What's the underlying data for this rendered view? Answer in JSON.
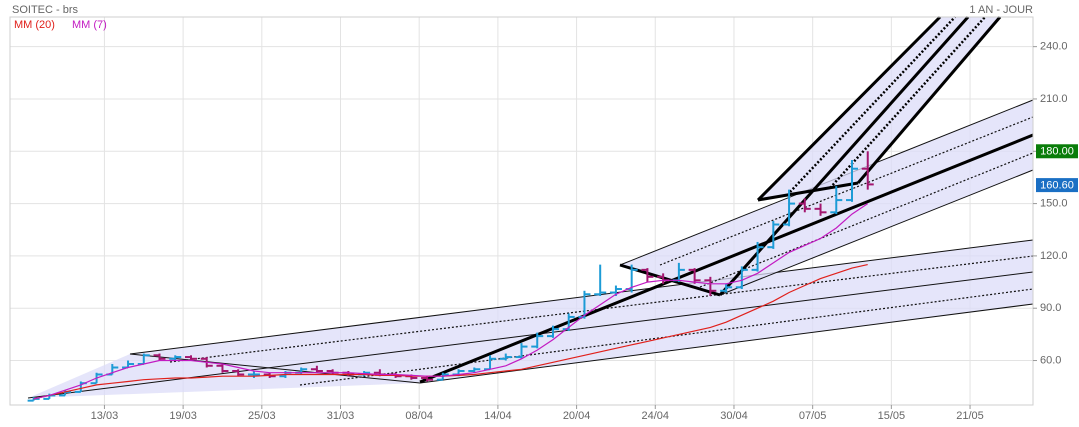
{
  "chart_data": {
    "type": "ohlc",
    "title": "SOITEC - brs",
    "period": "1 AN - JOUR",
    "x": [
      1,
      2,
      3,
      4,
      5,
      6,
      7,
      8,
      9,
      10,
      11,
      12,
      13,
      14,
      15,
      16,
      17,
      18,
      19,
      20,
      21,
      22,
      23,
      24,
      25,
      26,
      27,
      28,
      29,
      30,
      31,
      32,
      33,
      34,
      35,
      36,
      37,
      38,
      39,
      40,
      41,
      42,
      43,
      44,
      45,
      46,
      47,
      48,
      49,
      50,
      51,
      52,
      53,
      54
    ],
    "open": [
      37,
      38,
      40,
      42,
      47,
      52,
      56,
      58,
      63,
      61,
      62,
      61,
      57,
      54,
      52,
      52,
      51,
      53,
      55,
      54,
      53,
      52,
      53,
      52,
      51,
      50,
      49,
      52,
      54,
      55,
      61,
      62,
      68,
      74,
      78,
      85,
      98,
      99,
      101,
      112,
      108,
      106,
      112,
      106,
      100,
      102,
      112,
      125,
      138,
      150,
      147,
      145,
      152,
      170
    ],
    "high": [
      39,
      41,
      43,
      48,
      53,
      58,
      60,
      64,
      64,
      63,
      63,
      62,
      58,
      55,
      54,
      53,
      54,
      56,
      57,
      55,
      54,
      54,
      55,
      53,
      52,
      51,
      53,
      55,
      56,
      63,
      64,
      70,
      76,
      80,
      87,
      100,
      115,
      103,
      115,
      113,
      110,
      116,
      113,
      108,
      104,
      114,
      128,
      140,
      158,
      153,
      150,
      160,
      175,
      180
    ],
    "low": [
      37,
      38,
      40,
      42,
      47,
      52,
      56,
      58,
      60,
      60,
      60,
      56,
      53,
      51,
      50,
      50,
      50,
      52,
      53,
      52,
      51,
      51,
      51,
      50,
      49,
      48,
      49,
      51,
      53,
      55,
      60,
      61,
      67,
      73,
      77,
      84,
      97,
      97,
      99,
      105,
      104,
      105,
      104,
      97,
      99,
      101,
      111,
      124,
      137,
      145,
      143,
      144,
      151,
      158
    ],
    "close": [
      38,
      40,
      42,
      47,
      52,
      56,
      58,
      63,
      61,
      62,
      61,
      57,
      54,
      52,
      52,
      51,
      53,
      55,
      54,
      53,
      52,
      53,
      52,
      51,
      50,
      49,
      52,
      54,
      55,
      61,
      62,
      68,
      74,
      78,
      85,
      98,
      99,
      101,
      112,
      108,
      106,
      112,
      106,
      100,
      102,
      112,
      125,
      138,
      150,
      147,
      145,
      152,
      170,
      161
    ],
    "up_color": "#1c9bd6",
    "down_color": "#a3166f",
    "series": [
      {
        "name": "MM (20)",
        "color": "#e0201b",
        "values": [
          38,
          40,
          42,
          44,
          46,
          47,
          48,
          49,
          49.5,
          50,
          50,
          50.5,
          51,
          51,
          51,
          51.5,
          52,
          52,
          52,
          52,
          52,
          52,
          51.5,
          51.5,
          51,
          51,
          51,
          51.5,
          52,
          53,
          54,
          55,
          57,
          59,
          61,
          63,
          65,
          67,
          69,
          71,
          73,
          75,
          77,
          79,
          82,
          86,
          90,
          94,
          99,
          103,
          107,
          110,
          113,
          115
        ]
      },
      {
        "name": "MM (7)",
        "color": "#c21bc2",
        "values": [
          38,
          40,
          43,
          46,
          50,
          53,
          56,
          58,
          60,
          60,
          60,
          59,
          58,
          56,
          54,
          53,
          53,
          53,
          53,
          53,
          53,
          52.5,
          52,
          52,
          51.5,
          51,
          51,
          52,
          53,
          55,
          57,
          61,
          66,
          72,
          79,
          86,
          92,
          98,
          102,
          105,
          106,
          106,
          105,
          104,
          104,
          106,
          110,
          116,
          122,
          126,
          130,
          136,
          144,
          150
        ]
      }
    ],
    "xlim": [
      -0.5,
      64.5
    ],
    "xticks": [
      {
        "value": 5.5,
        "label": "13/03"
      },
      {
        "value": 10.5,
        "label": "19/03"
      },
      {
        "value": 15.5,
        "label": "25/03"
      },
      {
        "value": 20.5,
        "label": "31/03"
      },
      {
        "value": 25.5,
        "label": "08/04"
      },
      {
        "value": 30.5,
        "label": "14/04"
      },
      {
        "value": 35.5,
        "label": "20/04"
      },
      {
        "value": 40.5,
        "label": "24/04"
      },
      {
        "value": 45.5,
        "label": "30/04"
      },
      {
        "value": 50.5,
        "label": "07/05"
      },
      {
        "value": 55.5,
        "label": "15/05"
      },
      {
        "value": 60.5,
        "label": "21/05"
      }
    ],
    "ylim": [
      34.5,
      257
    ],
    "yticks": [
      {
        "value": 60,
        "label": "60.0"
      },
      {
        "value": 90,
        "label": "90.0"
      },
      {
        "value": 120,
        "label": "120.0"
      },
      {
        "value": 150,
        "label": "150.0"
      },
      {
        "value": 180,
        "label": "180.0"
      },
      {
        "value": 210,
        "label": "210.0"
      },
      {
        "value": 240,
        "label": "240.0"
      }
    ],
    "grid": true,
    "markers": [
      {
        "value": 180,
        "label": "180.00",
        "color": "#0a7d0a"
      },
      {
        "value": 160.6,
        "label": "160.60",
        "color": "#1a6fc4"
      }
    ]
  }
}
